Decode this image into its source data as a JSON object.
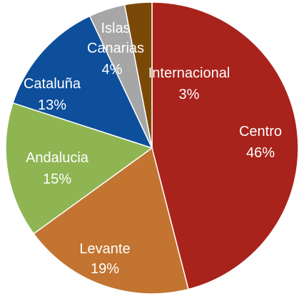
{
  "chart_data": {
    "type": "pie",
    "categories": [
      "Centro",
      "Levante",
      "Andalucia",
      "Cataluña",
      "Islas Canarias",
      "Internacional"
    ],
    "values": [
      46,
      19,
      15,
      13,
      4,
      3
    ],
    "value_labels": [
      "46%",
      "19%",
      "15%",
      "13%",
      "4%",
      "3%"
    ],
    "colors": [
      "#a8231b",
      "#c27430",
      "#8fb553",
      "#0d4f9b",
      "#a6a6a6",
      "#7a4908"
    ]
  }
}
